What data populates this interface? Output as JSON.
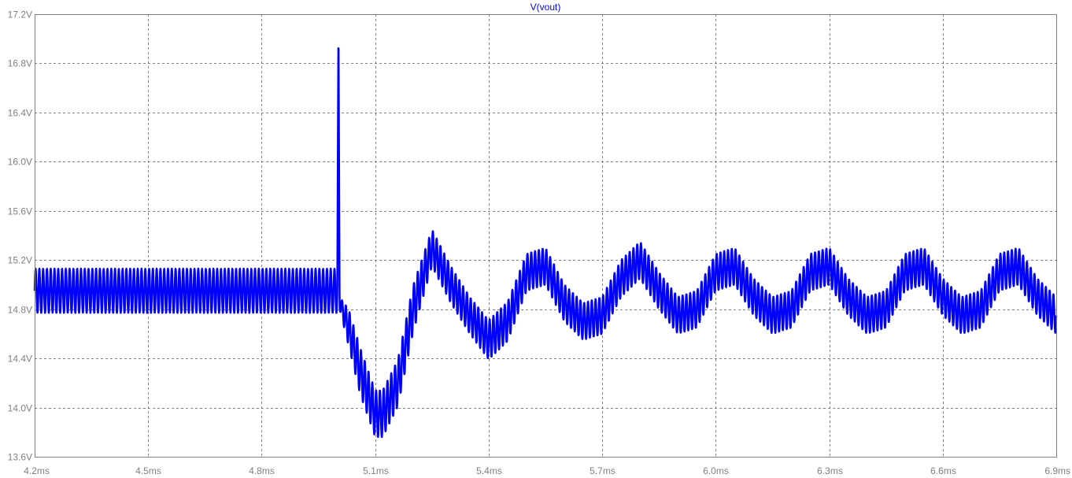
{
  "chart_data": {
    "type": "line",
    "title": "V(vout)",
    "xlabel": "",
    "ylabel": "",
    "x_unit": "ms",
    "y_unit": "V",
    "xlim": [
      4.2,
      6.9
    ],
    "ylim": [
      13.6,
      17.2
    ],
    "x_ticks": [
      "4.2ms",
      "4.5ms",
      "4.8ms",
      "5.1ms",
      "5.4ms",
      "5.7ms",
      "6.0ms",
      "6.3ms",
      "6.6ms",
      "6.9ms"
    ],
    "y_ticks": [
      "13.6V",
      "14.0V",
      "14.4V",
      "14.8V",
      "15.2V",
      "15.6V",
      "16.0V",
      "16.4V",
      "16.8V",
      "17.2V"
    ],
    "grid": true,
    "legend": "none",
    "colors": {
      "series": "#0000ff",
      "title": "#0000ff",
      "grid": "#808080",
      "axis_text": "#808080"
    },
    "series": [
      {
        "name": "V(vout)",
        "ripple_frequency_khz": 100,
        "x": [
          4.2,
          4.6,
          5.0,
          5.003,
          5.006,
          5.03,
          5.06,
          5.1,
          5.12,
          5.16,
          5.2,
          5.25,
          5.3,
          5.35,
          5.4,
          5.45,
          5.5,
          5.55,
          5.6,
          5.65,
          5.7,
          5.75,
          5.8,
          5.85,
          5.9,
          5.95,
          6.0,
          6.05,
          6.1,
          6.15,
          6.2,
          6.25,
          6.3,
          6.35,
          6.4,
          6.45,
          6.5,
          6.55,
          6.6,
          6.65,
          6.7,
          6.75,
          6.8,
          6.85,
          6.9
        ],
        "y_center": [
          14.95,
          14.95,
          14.95,
          17.1,
          14.85,
          14.65,
          14.3,
          13.95,
          13.95,
          14.2,
          14.8,
          15.3,
          15.0,
          14.75,
          14.55,
          14.7,
          15.1,
          15.15,
          14.85,
          14.7,
          14.75,
          15.05,
          15.2,
          14.95,
          14.75,
          14.8,
          15.1,
          15.15,
          14.9,
          14.75,
          14.8,
          15.1,
          15.15,
          14.9,
          14.75,
          14.8,
          15.1,
          15.15,
          14.9,
          14.75,
          14.8,
          15.1,
          15.15,
          14.9,
          14.75
        ],
        "ripple_pp": [
          0.36,
          0.36,
          0.36,
          0.0,
          0.1,
          0.3,
          0.38,
          0.38,
          0.38,
          0.38,
          0.38,
          0.3,
          0.3,
          0.3,
          0.32,
          0.32,
          0.3,
          0.3,
          0.3,
          0.3,
          0.3,
          0.3,
          0.3,
          0.3,
          0.3,
          0.3,
          0.3,
          0.3,
          0.3,
          0.3,
          0.3,
          0.3,
          0.3,
          0.3,
          0.3,
          0.3,
          0.3,
          0.3,
          0.3,
          0.3,
          0.3,
          0.3,
          0.3,
          0.3,
          0.3
        ]
      }
    ]
  }
}
